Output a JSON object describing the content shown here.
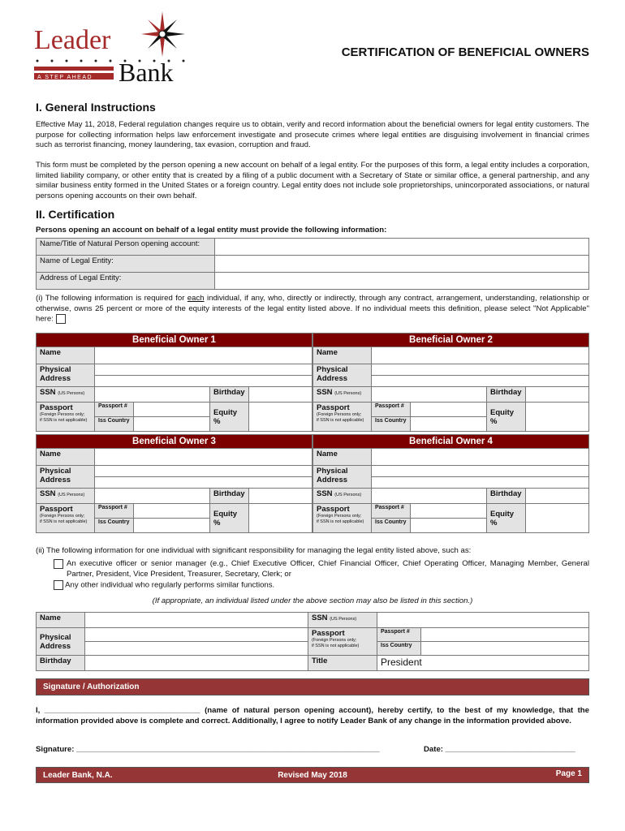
{
  "logo": {
    "word1": "Leader",
    "word2": "Bank",
    "tagline": "A STEP AHEAD",
    "color": "#a52a2a"
  },
  "title": "CERTIFICATION OF BENEFICIAL OWNERS",
  "section1": {
    "heading": "I. General Instructions",
    "p1": "Effective May 11, 2018, Federal regulation changes require us to obtain, verify and record information about the beneficial owners for legal entity customers. The purpose for collecting information helps law enforcement investigate and prosecute crimes where legal entities are disguising involvement in financial crimes such as terrorist financing, money laundering, tax evasion, corruption and fraud.",
    "p2": "This form must be completed by the person opening a new account on behalf of a legal entity. For the purposes of this form, a legal entity includes a corporation, limited liability company, or other entity that is created by a filing of a public document with a Secretary of State or similar office, a general partnership, and any similar business entity formed in the United States or a foreign country. Legal entity does not include sole proprietorships, unincorporated associations, or natural persons opening accounts on their own behalf."
  },
  "section2": {
    "heading": "II. Certification",
    "intro": "Persons opening an account on behalf of a legal entity must provide the following information:",
    "fields": [
      "Name/Title of Natural Person opening account:",
      "Name of Legal Entity:",
      "Address of Legal Entity:"
    ],
    "part_i_a": "(i) The following information is required for ",
    "part_i_u": "each",
    "part_i_b": " individual, if any, who, directly or indirectly, through any contract, arrangement, understanding, relationship or otherwise, owns 25 percent or more of the equity interests of the legal entity listed above. If no individual meets this definition, please select \"Not Applicable\" here:",
    "not_applicable_checked": false
  },
  "owner_labels": {
    "name": "Name",
    "address": "Physical Address",
    "ssn": "SSN",
    "ssn_note": "(US Persons)",
    "passport": "Passport",
    "passport_note1": "(Foreign Persons only;",
    "passport_note2": "if SSN is not applicable)",
    "passport_no": "Passport #",
    "iss_country": "Iss Country",
    "birthday": "Birthday",
    "equity": "Equity %"
  },
  "owners": [
    "Beneficial Owner 1",
    "Beneficial Owner 2",
    "Beneficial Owner 3",
    "Beneficial Owner 4"
  ],
  "part_ii": {
    "intro": "(ii) The following information for one individual with significant responsibility for managing the legal entity listed above, such as:",
    "opt1": "An executive officer or senior manager (e.g., Chief Executive Officer, Chief Financial Officer, Chief Operating Officer, Managing Member, General Partner, President, Vice President, Treasurer, Secretary, Clerk; or",
    "opt2": "Any other individual who regularly performs similar functions.",
    "note": "(If appropriate, an individual listed under the above section may also be listed in this section.)",
    "title_label": "Title",
    "title_value": "President"
  },
  "signature": {
    "band": "Signature / Authorization",
    "cert": "I, ____________________________________ (name of natural person opening account), hereby certify, to the best of my knowledge, that the information provided above is complete and correct. Additionally, I agree to notify Leader Bank of any change in the information provided above.",
    "sig_label": "Signature: ______________________________________________________________________",
    "date_label": "Date: ______________________________"
  },
  "footer": {
    "left": "Leader Bank, N.A.",
    "center": "Revised May 2018",
    "right": "Page 1"
  }
}
